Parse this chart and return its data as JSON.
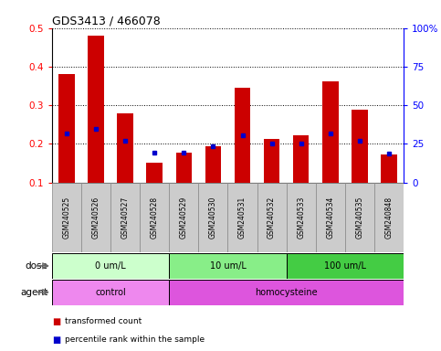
{
  "title": "GDS3413 / 466078",
  "samples": [
    "GSM240525",
    "GSM240526",
    "GSM240527",
    "GSM240528",
    "GSM240529",
    "GSM240530",
    "GSM240531",
    "GSM240532",
    "GSM240533",
    "GSM240534",
    "GSM240535",
    "GSM240848"
  ],
  "transformed_count": [
    0.38,
    0.48,
    0.278,
    0.152,
    0.178,
    0.195,
    0.345,
    0.212,
    0.222,
    0.363,
    0.288,
    0.172
  ],
  "percentile_rank": [
    0.228,
    0.238,
    0.208,
    0.178,
    0.178,
    0.193,
    0.222,
    0.202,
    0.202,
    0.228,
    0.208,
    0.175
  ],
  "ylim_left": [
    0.1,
    0.5
  ],
  "ylim_right": [
    0,
    100
  ],
  "yticks_left": [
    0.1,
    0.2,
    0.3,
    0.4,
    0.5
  ],
  "yticks_right": [
    0,
    25,
    50,
    75,
    100
  ],
  "ytick_right_labels": [
    "0",
    "25",
    "50",
    "75",
    "100%"
  ],
  "bar_color": "#cc0000",
  "blue_color": "#0000cc",
  "dose_groups": [
    {
      "label": "0 um/L",
      "start": 0,
      "end": 4,
      "color": "#ccffcc"
    },
    {
      "label": "10 um/L",
      "start": 4,
      "end": 8,
      "color": "#88ee88"
    },
    {
      "label": "100 um/L",
      "start": 8,
      "end": 12,
      "color": "#44cc44"
    }
  ],
  "agent_groups": [
    {
      "label": "control",
      "start": 0,
      "end": 4,
      "color": "#ee88ee"
    },
    {
      "label": "homocysteine",
      "start": 4,
      "end": 12,
      "color": "#dd55dd"
    }
  ],
  "dose_label": "dose",
  "agent_label": "agent",
  "legend_items": [
    {
      "color": "#cc0000",
      "label": "transformed count"
    },
    {
      "color": "#0000cc",
      "label": "percentile rank within the sample"
    }
  ],
  "bar_bottom": 0.1,
  "sample_bg": "#cccccc",
  "sample_border": "#888888"
}
